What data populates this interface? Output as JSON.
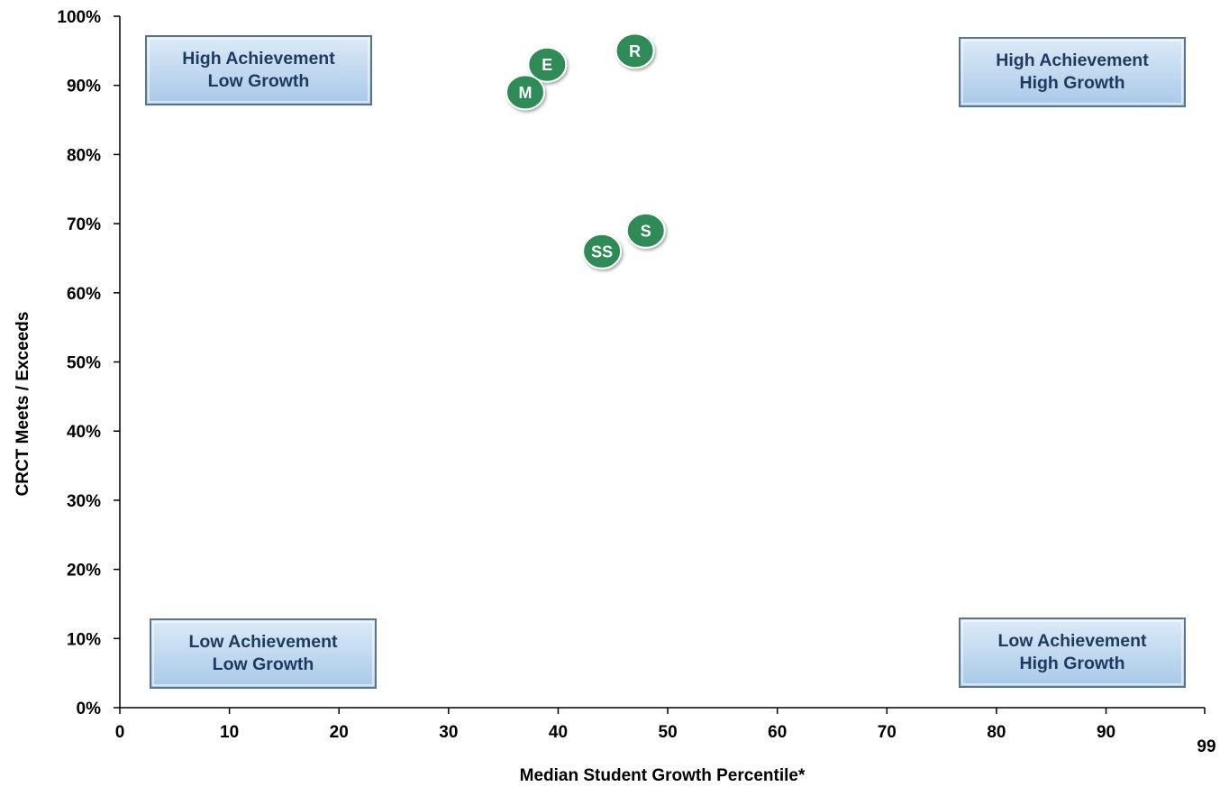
{
  "chart_data": {
    "type": "scatter",
    "title": "",
    "xlabel": "Median Student Growth Percentile*",
    "ylabel": "CRCT Meets / Exceeds",
    "xlim": [
      0,
      99
    ],
    "ylim": [
      0,
      100
    ],
    "x_ticks": [
      {
        "value": 0,
        "label": "0"
      },
      {
        "value": 10,
        "label": "10"
      },
      {
        "value": 20,
        "label": "20"
      },
      {
        "value": 30,
        "label": "30"
      },
      {
        "value": 40,
        "label": "40"
      },
      {
        "value": 50,
        "label": "50"
      },
      {
        "value": 60,
        "label": "60"
      },
      {
        "value": 70,
        "label": "70"
      },
      {
        "value": 80,
        "label": "80"
      },
      {
        "value": 90,
        "label": "90"
      },
      {
        "value": 99,
        "label": "99"
      }
    ],
    "y_ticks": [
      {
        "value": 0,
        "label": "0%"
      },
      {
        "value": 10,
        "label": "10%"
      },
      {
        "value": 20,
        "label": "20%"
      },
      {
        "value": 30,
        "label": "30%"
      },
      {
        "value": 40,
        "label": "40%"
      },
      {
        "value": 50,
        "label": "50%"
      },
      {
        "value": 60,
        "label": "60%"
      },
      {
        "value": 70,
        "label": "70%"
      },
      {
        "value": 80,
        "label": "80%"
      },
      {
        "value": 90,
        "label": "90%"
      },
      {
        "value": 100,
        "label": "100%"
      }
    ],
    "grid": false,
    "points": [
      {
        "label": "R",
        "x": 47,
        "y": 95
      },
      {
        "label": "E",
        "x": 39,
        "y": 93
      },
      {
        "label": "M",
        "x": 37,
        "y": 89
      },
      {
        "label": "S",
        "x": 48,
        "y": 69
      },
      {
        "label": "SS",
        "x": 44,
        "y": 66
      }
    ],
    "quadrants": [
      {
        "position": "top-left",
        "lines": [
          "High Achievement",
          "Low Growth"
        ]
      },
      {
        "position": "top-right",
        "lines": [
          "High Achievement",
          "High Growth"
        ]
      },
      {
        "position": "bottom-left",
        "lines": [
          "Low Achievement",
          "Low Growth"
        ]
      },
      {
        "position": "bottom-right",
        "lines": [
          "Low Achievement",
          "High Growth"
        ]
      }
    ],
    "colors": {
      "point_fill": "#2E8B57",
      "point_text": "#FFFFFF",
      "quadrant_fill_top": "#DCEBF8",
      "quadrant_fill_bottom": "#A9C8E8",
      "quadrant_border": "#5A7391",
      "quadrant_text": "#1F3A5F",
      "axis": "#000000"
    }
  }
}
